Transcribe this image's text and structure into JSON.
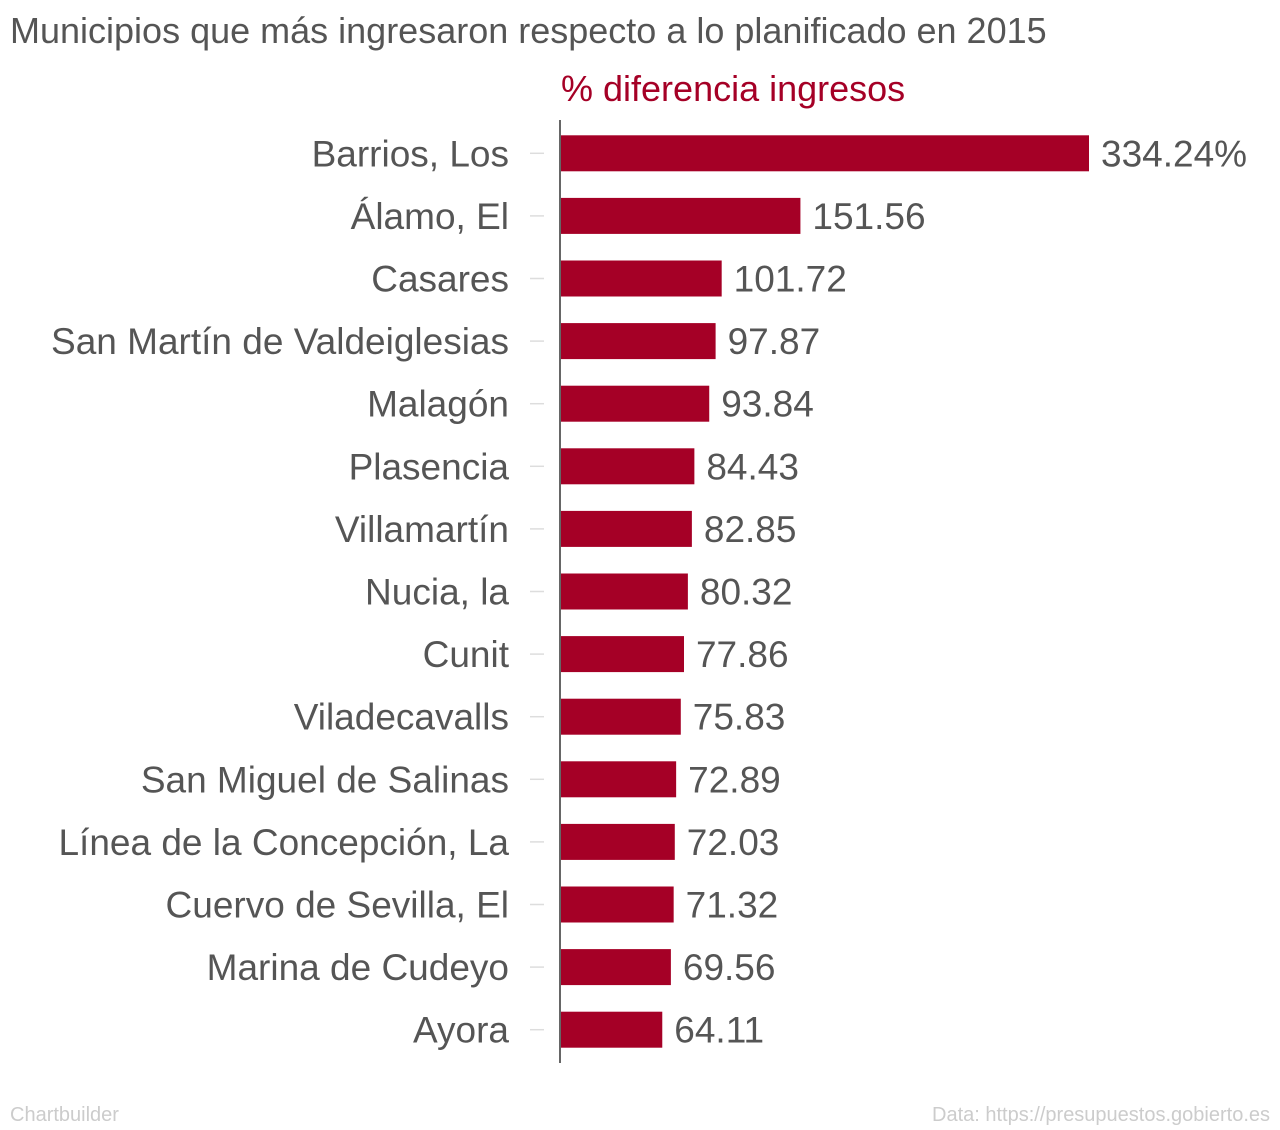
{
  "header": {
    "title": "Municipios que más ingresaron respecto a lo planificado en 2015"
  },
  "footer": {
    "credit": "Chartbuilder",
    "source": "Data: https://presupuestos.gobierto.es"
  },
  "colors": {
    "bar": "#a50026",
    "subtitle": "#a50026",
    "text": "#555555",
    "axis": "#333333",
    "tick": "#dddddd",
    "footer": "#cccccc"
  },
  "chart_data": {
    "type": "bar",
    "orientation": "horizontal",
    "title": "Municipios que más ingresaron respecto a lo planificado en 2015",
    "categories": [
      "Barrios, Los",
      "Álamo, El",
      "Casares",
      "San Martín de Valdeiglesias",
      "Malagón",
      "Plasencia",
      "Villamartín",
      "Nucia, la",
      "Cunit",
      "Viladecavalls",
      "San Miguel de Salinas",
      "Línea de la Concepción, La",
      "Cuervo de Sevilla, El",
      "Marina de Cudeyo",
      "Ayora"
    ],
    "series": [
      {
        "name": "% diferencia ingresos",
        "values": [
          334.24,
          151.56,
          101.72,
          97.87,
          93.84,
          84.43,
          82.85,
          80.32,
          77.86,
          75.83,
          72.89,
          72.03,
          71.32,
          69.56,
          64.11
        ]
      }
    ],
    "value_labels": [
      "334.24%",
      "151.56",
      "101.72",
      "97.87",
      "93.84",
      "84.43",
      "82.85",
      "80.32",
      "77.86",
      "75.83",
      "72.89",
      "72.03",
      "71.32",
      "69.56",
      "64.11"
    ],
    "xlim": [
      0,
      334.24
    ],
    "grid": false,
    "legend": "none"
  }
}
